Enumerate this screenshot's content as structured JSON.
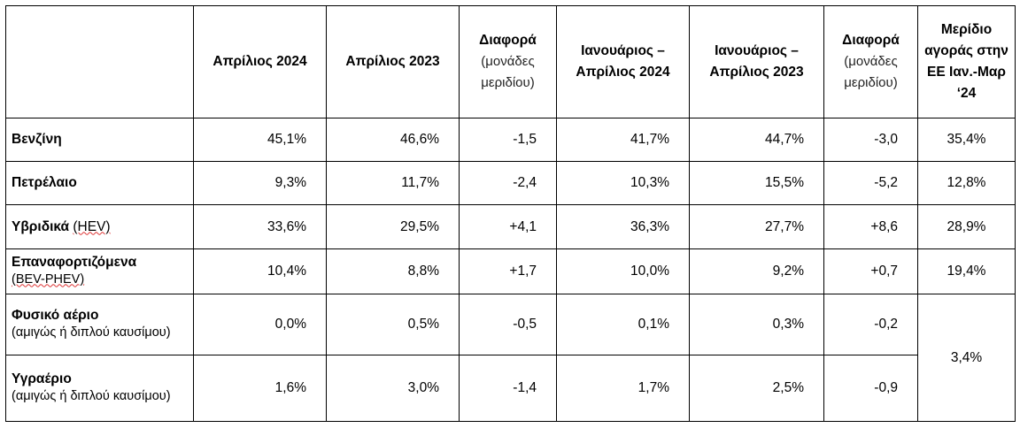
{
  "table": {
    "header": [
      {
        "title": "Απρίλιος 2024"
      },
      {
        "title": "Απρίλιος 2023"
      },
      {
        "title": "Διαφορά",
        "note": "(μονάδες μεριδίου)"
      },
      {
        "title": "Ιανουάριος – Απρίλιος 2024"
      },
      {
        "title": "Ιανουάριος – Απρίλιος 2023"
      },
      {
        "title": "Διαφορά",
        "note": "(μονάδες μεριδίου)"
      },
      {
        "title": "Μερίδιο αγοράς στην ΕΕ Ιαν.-Μαρ ‘24"
      }
    ],
    "rows": [
      {
        "label": "Βενζίνη",
        "cells": [
          "45,1%",
          "46,6%",
          "-1,5",
          "41,7%",
          "44,7%",
          "-3,0"
        ],
        "share": "35,4%"
      },
      {
        "label": "Πετρέλαιο",
        "cells": [
          "9,3%",
          "11,7%",
          "-2,4",
          "10,3%",
          "15,5%",
          "-5,2"
        ],
        "share": "12,8%"
      },
      {
        "label": "Υβριδικά",
        "note": "(HEV)",
        "cells": [
          "33,6%",
          "29,5%",
          "+4,1",
          "36,3%",
          "27,7%",
          "+8,6"
        ],
        "share": "28,9%"
      },
      {
        "label": "Επαναφορτιζόμενα",
        "note": "(BEV-PHEV)",
        "cells": [
          "10,4%",
          "8,8%",
          "+1,7",
          "10,0%",
          "9,2%",
          "+0,7"
        ],
        "share": "19,4%"
      },
      {
        "label": "Φυσικό αέριο",
        "note": "(αμιγώς ή διπλού καυσίμου)",
        "cells": [
          "0,0%",
          "0,5%",
          "-0,5",
          "0,1%",
          "0,3%",
          "-0,2"
        ]
      },
      {
        "label": "Υγραέριο",
        "note": "(αμιγώς ή διπλού καυσίμου)",
        "cells": [
          "1,6%",
          "3,0%",
          "-1,4",
          "1,7%",
          "2,5%",
          "-0,9"
        ]
      }
    ],
    "merged_share": "3,4%"
  }
}
